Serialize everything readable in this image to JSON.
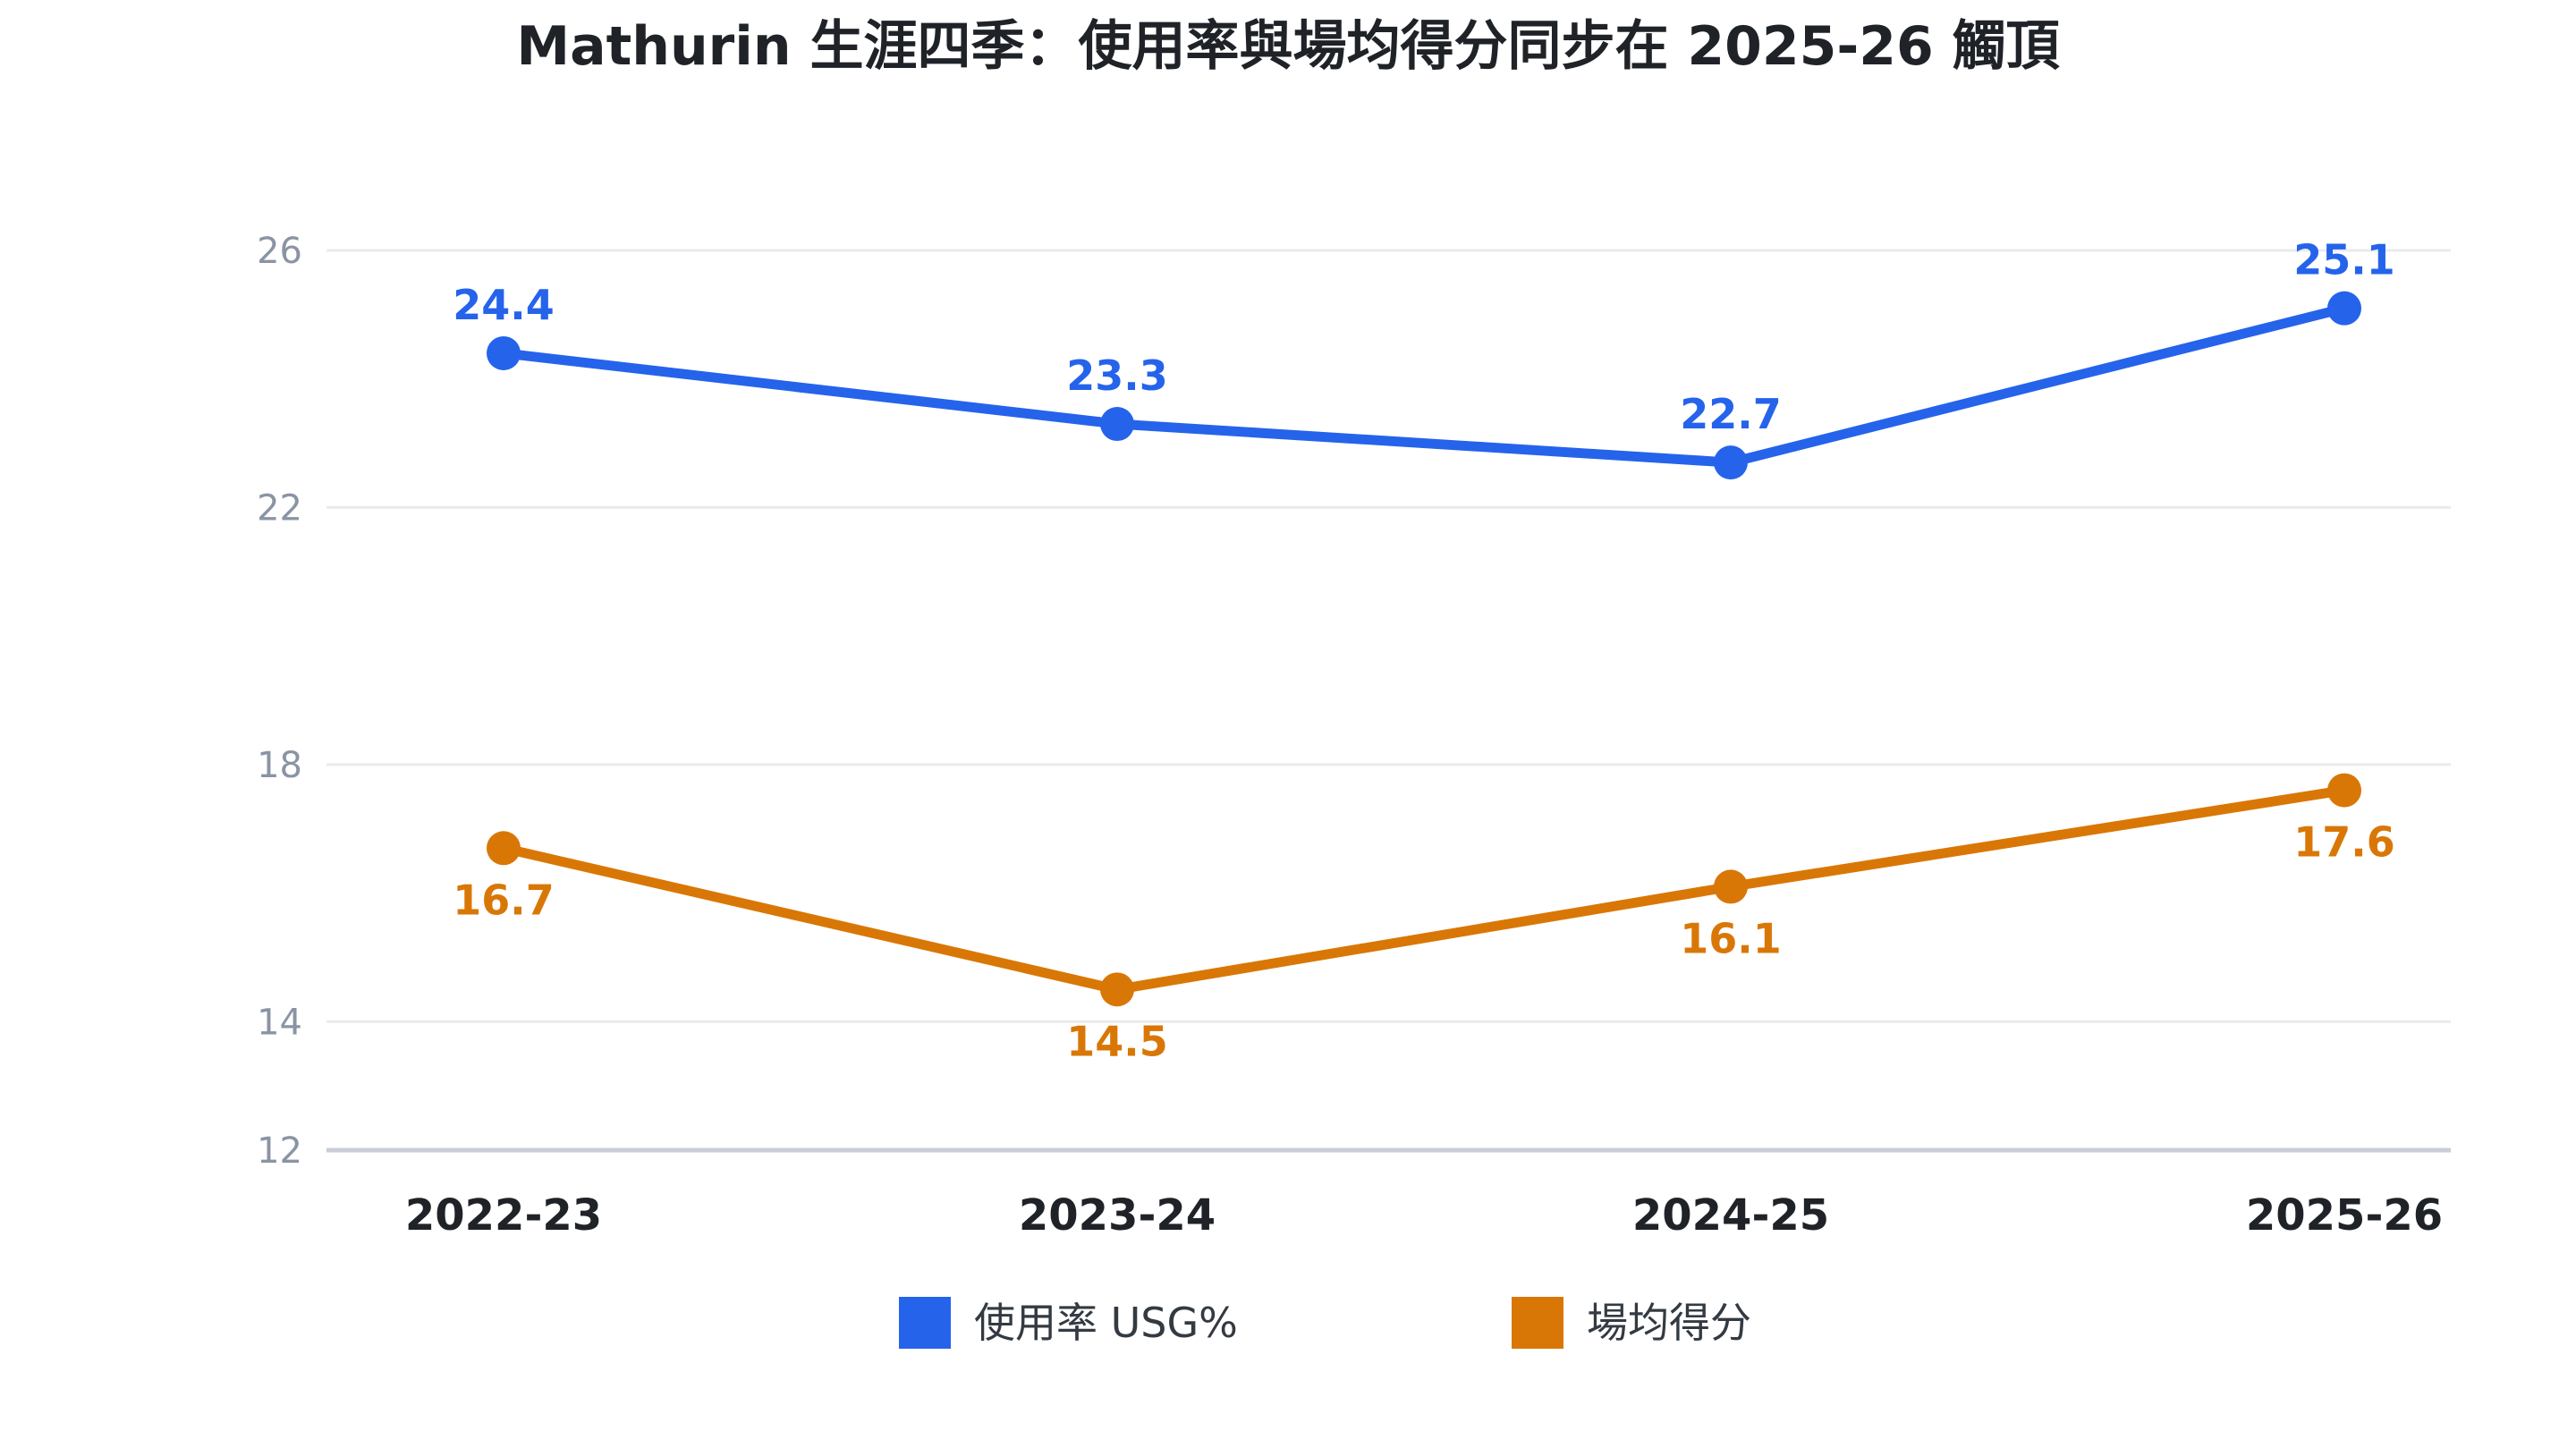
{
  "chart_data": {
    "type": "line",
    "title": "Mathurin 生涯四季：使用率與場均得分同步在 2025-26 觸頂",
    "categories": [
      "2022-23",
      "2023-24",
      "2024-25",
      "2025-26"
    ],
    "series": [
      {
        "name": "使用率 USG%",
        "values": [
          24.4,
          23.3,
          22.7,
          25.1
        ],
        "labels": [
          "24.4",
          "23.3",
          "22.7",
          "25.1"
        ],
        "label_position": "above",
        "color": "#2563eb"
      },
      {
        "name": "場均得分",
        "values": [
          16.7,
          14.5,
          16.1,
          17.6
        ],
        "labels": [
          "16.7",
          "14.5",
          "16.1",
          "17.6"
        ],
        "label_position": "below",
        "color": "#d97706"
      }
    ],
    "yticks": [
      12,
      14,
      18,
      22,
      26
    ],
    "ytick_labels": [
      "12",
      "14",
      "18",
      "22",
      "26"
    ],
    "ylim": [
      12,
      26
    ],
    "grid": true,
    "legend_position": "bottom",
    "xlabel": "",
    "ylabel": "",
    "colors": {
      "grid": "#e8ebef",
      "baseline": "#c9ced6",
      "ytick": "#8a94a3",
      "text": "#1f2328"
    }
  }
}
